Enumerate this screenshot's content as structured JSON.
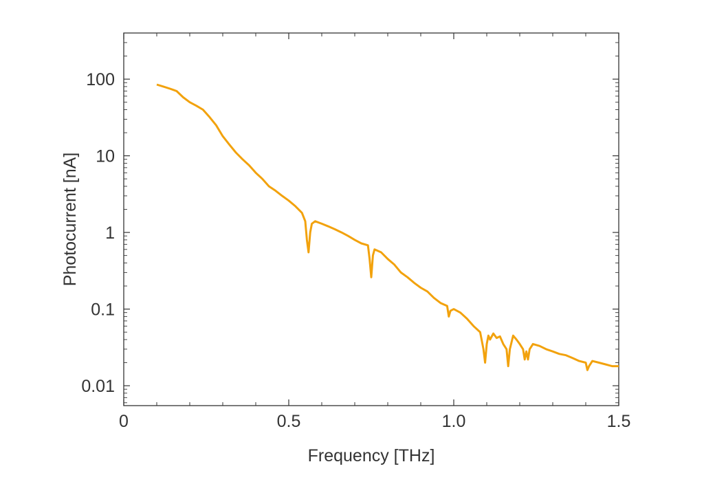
{
  "chart_data": {
    "type": "line",
    "title": "",
    "xlabel": "Frequency [THz]",
    "ylabel": "Photocurrent [nA]",
    "xlim": [
      0,
      1.5
    ],
    "ylim": [
      0.0055,
      400
    ],
    "yscale": "log",
    "grid": false,
    "legend": "none",
    "x_ticks": [
      {
        "value": 0,
        "label": "0"
      },
      {
        "value": 0.5,
        "label": "0.5"
      },
      {
        "value": 1.0,
        "label": "1.0"
      },
      {
        "value": 1.5,
        "label": "1.5"
      }
    ],
    "y_ticks": [
      {
        "value": 0.01,
        "label": "0.01"
      },
      {
        "value": 0.1,
        "label": "0.1"
      },
      {
        "value": 1,
        "label": "1"
      },
      {
        "value": 10,
        "label": "10"
      },
      {
        "value": 100,
        "label": "100"
      }
    ],
    "line_color": "#f2a20d",
    "series": [
      {
        "x": [
          0.1,
          0.12,
          0.14,
          0.16,
          0.18,
          0.2,
          0.22,
          0.24,
          0.26,
          0.28,
          0.3,
          0.32,
          0.34,
          0.36,
          0.38,
          0.4,
          0.42,
          0.44,
          0.46,
          0.48,
          0.5,
          0.52,
          0.54,
          0.55,
          0.555,
          0.56,
          0.565,
          0.57,
          0.58,
          0.6,
          0.62,
          0.64,
          0.66,
          0.68,
          0.7,
          0.72,
          0.74,
          0.745,
          0.75,
          0.755,
          0.76,
          0.78,
          0.8,
          0.82,
          0.84,
          0.86,
          0.88,
          0.9,
          0.92,
          0.94,
          0.96,
          0.98,
          0.985,
          0.99,
          1.0,
          1.02,
          1.04,
          1.06,
          1.08,
          1.09,
          1.095,
          1.1,
          1.105,
          1.11,
          1.12,
          1.13,
          1.14,
          1.15,
          1.16,
          1.165,
          1.17,
          1.18,
          1.19,
          1.2,
          1.21,
          1.215,
          1.22,
          1.225,
          1.23,
          1.24,
          1.26,
          1.28,
          1.3,
          1.32,
          1.34,
          1.36,
          1.38,
          1.4,
          1.405,
          1.41,
          1.42,
          1.44,
          1.46,
          1.48,
          1.5
        ],
        "y": [
          85,
          80,
          75,
          70,
          58,
          50,
          45,
          40,
          32,
          25,
          18,
          14,
          11,
          9,
          7.5,
          6,
          5,
          4,
          3.5,
          3,
          2.6,
          2.2,
          1.8,
          1.4,
          0.8,
          0.55,
          1.0,
          1.3,
          1.4,
          1.3,
          1.2,
          1.1,
          1.0,
          0.9,
          0.8,
          0.72,
          0.68,
          0.45,
          0.26,
          0.5,
          0.6,
          0.55,
          0.45,
          0.38,
          0.3,
          0.26,
          0.22,
          0.19,
          0.17,
          0.14,
          0.12,
          0.11,
          0.08,
          0.095,
          0.1,
          0.09,
          0.075,
          0.06,
          0.05,
          0.03,
          0.02,
          0.035,
          0.045,
          0.04,
          0.048,
          0.042,
          0.044,
          0.035,
          0.03,
          0.018,
          0.03,
          0.045,
          0.04,
          0.035,
          0.03,
          0.022,
          0.028,
          0.022,
          0.03,
          0.035,
          0.033,
          0.03,
          0.028,
          0.026,
          0.025,
          0.023,
          0.021,
          0.02,
          0.016,
          0.018,
          0.021,
          0.02,
          0.019,
          0.018,
          0.018
        ]
      }
    ]
  }
}
